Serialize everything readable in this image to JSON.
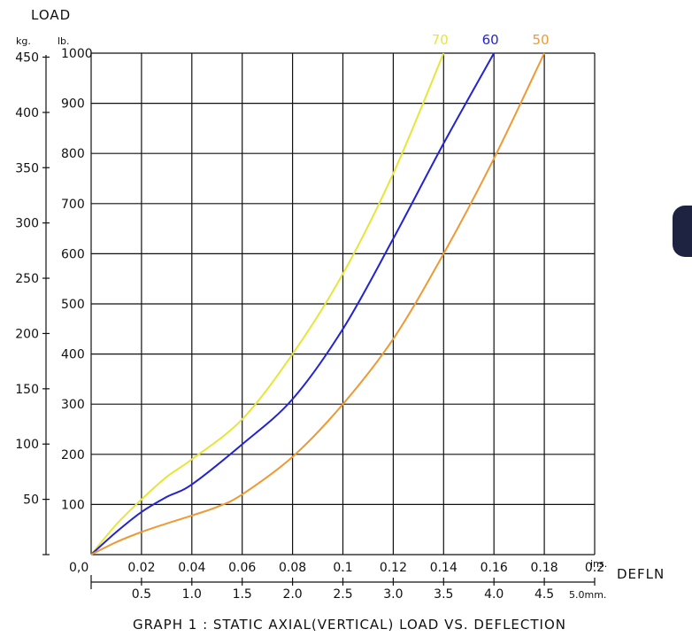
{
  "chart_data": {
    "type": "line",
    "title": "GRAPH 1 : STATIC AXIAL(VERTICAL) LOAD VS. DEFLECTION",
    "ylabel": "LOAD",
    "xlabel": "DEFLN",
    "y_units": {
      "kg": "kg.",
      "lb": "lb."
    },
    "x_units": {
      "in": "ins.",
      "mm": "5.0mm."
    },
    "origin_label": "0,0",
    "y_ticks_lb": [
      "100",
      "200",
      "300",
      "400",
      "500",
      "600",
      "700",
      "800",
      "900",
      "1000"
    ],
    "y_ticks_kg": [
      "50",
      "100",
      "150",
      "200",
      "250",
      "300",
      "350",
      "400",
      "450"
    ],
    "x_ticks_in": [
      "0.02",
      "0.04",
      "0.06",
      "0.08",
      "0.1",
      "0.12",
      "0.14",
      "0.16",
      "0.18",
      "0.2"
    ],
    "x_ticks_mm": [
      "0.5",
      "1.0",
      "1.5",
      "2.0",
      "2.5",
      "3.0",
      "3.5",
      "4.0",
      "4.5"
    ],
    "xlim_in": [
      0,
      0.2
    ],
    "ylim_lb": [
      0,
      1000
    ],
    "grid": true,
    "series": [
      {
        "name": "70",
        "color": "#e6e63a",
        "x": [
          0,
          0.01,
          0.02,
          0.03,
          0.04,
          0.06,
          0.08,
          0.1,
          0.12,
          0.14
        ],
        "y": [
          0,
          60,
          110,
          155,
          190,
          270,
          400,
          560,
          760,
          1000
        ]
      },
      {
        "name": "60",
        "color": "#2323d6",
        "x": [
          0,
          0.01,
          0.02,
          0.03,
          0.04,
          0.06,
          0.08,
          0.1,
          0.12,
          0.14,
          0.16
        ],
        "y": [
          0,
          45,
          85,
          115,
          140,
          220,
          310,
          450,
          630,
          820,
          1000
        ]
      },
      {
        "name": "50",
        "color": "#ee9a33",
        "x": [
          0,
          0.01,
          0.02,
          0.03,
          0.04,
          0.05,
          0.06,
          0.08,
          0.1,
          0.12,
          0.14,
          0.16,
          0.18
        ],
        "y": [
          0,
          25,
          45,
          62,
          78,
          95,
          120,
          195,
          300,
          430,
          600,
          790,
          1000
        ]
      }
    ]
  }
}
